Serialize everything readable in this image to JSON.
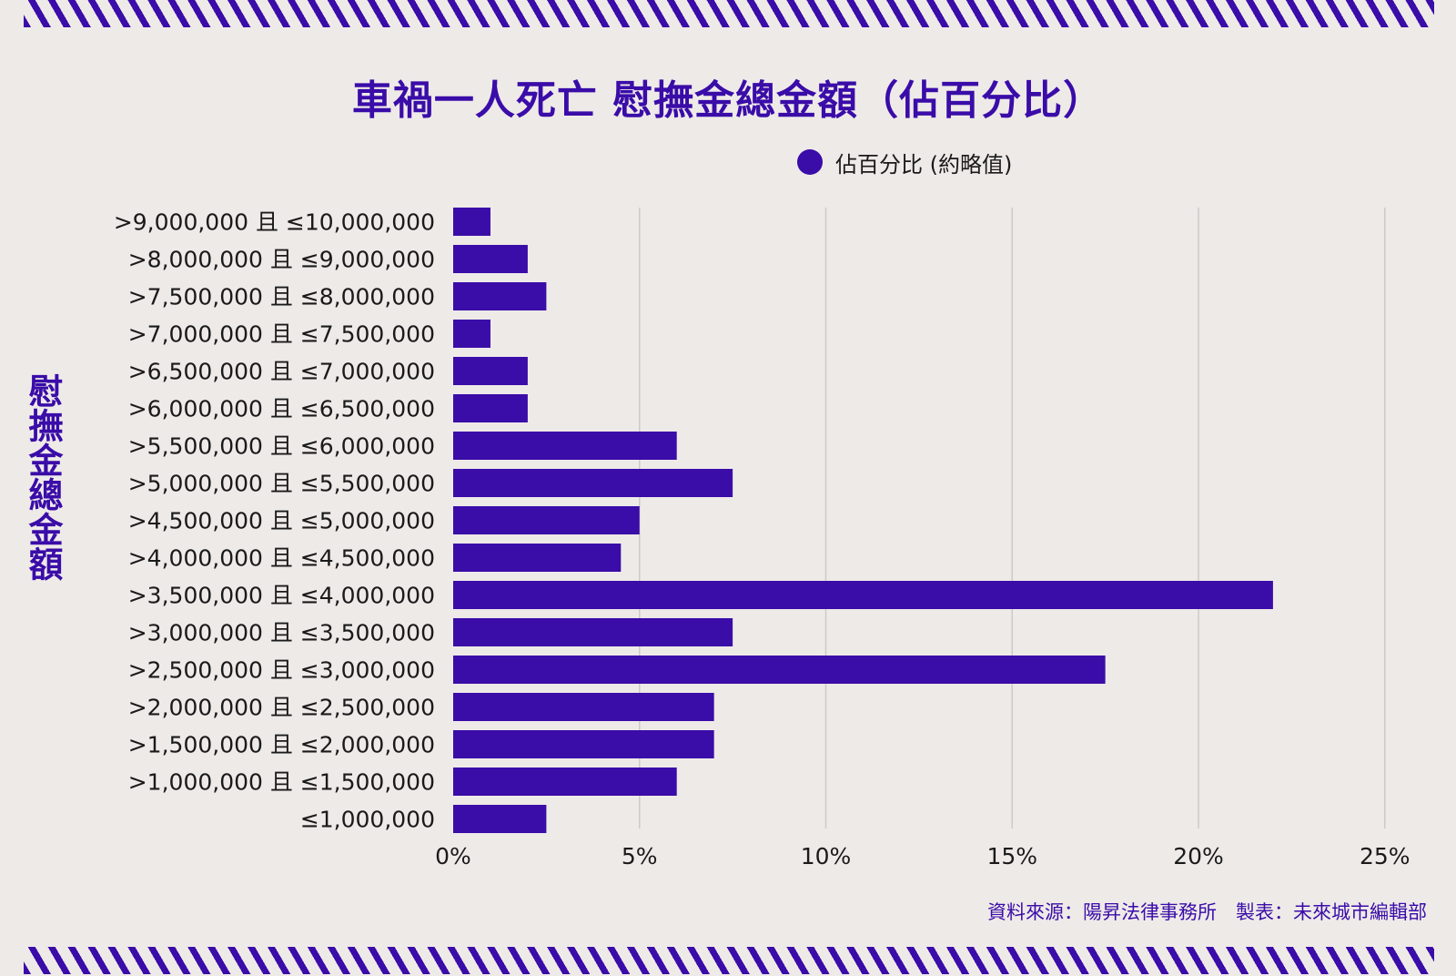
{
  "title": "車禍一人死亡 慰撫金總金額（佔百分比）",
  "source": "資料來源：陽昇法律事務所　製表：未來城市編輯部",
  "colors": {
    "bar": "#3A0CA8",
    "accent": "#3A0CA8",
    "grid": "#CFCACA",
    "background": "#EEEAE8"
  },
  "chart_data": {
    "type": "bar",
    "orientation": "horizontal",
    "title": "車禍一人死亡 慰撫金總金額（佔百分比）",
    "ylabel": "慰撫金總金額",
    "xlabel": "",
    "legend": {
      "position": "top",
      "entries": [
        "佔百分比 (約略值)"
      ]
    },
    "categories": [
      ">9,000,000 且 ≤10,000,000",
      ">8,000,000 且 ≤9,000,000",
      ">7,500,000 且 ≤8,000,000",
      ">7,000,000 且 ≤7,500,000",
      ">6,500,000 且 ≤7,000,000",
      ">6,000,000 且 ≤6,500,000",
      ">5,500,000 且 ≤6,000,000",
      ">5,000,000 且 ≤5,500,000",
      ">4,500,000 且 ≤5,000,000",
      ">4,000,000 且 ≤4,500,000",
      ">3,500,000 且 ≤4,000,000",
      ">3,000,000 且 ≤3,500,000",
      ">2,500,000 且 ≤3,000,000",
      ">2,000,000 且 ≤2,500,000",
      ">1,500,000 且 ≤2,000,000",
      ">1,000,000 且 ≤1,500,000",
      "≤1,000,000"
    ],
    "series": [
      {
        "name": "佔百分比 (約略值)",
        "values": [
          1,
          2,
          2.5,
          1,
          2,
          2,
          6,
          7.5,
          5,
          4.5,
          22,
          7.5,
          17.5,
          7,
          7,
          6,
          2.5
        ]
      }
    ],
    "xticks": [
      "0%",
      "5%",
      "10%",
      "15%",
      "20%",
      "25%"
    ],
    "xlim": [
      0,
      25
    ],
    "grid": true
  }
}
